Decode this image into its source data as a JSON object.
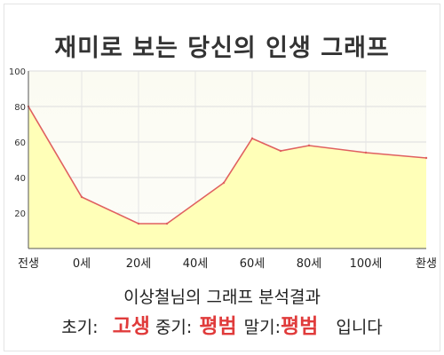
{
  "title": "재미로 보는 당신의 인생 그래프",
  "chart_data": {
    "type": "area",
    "x_labels": [
      "전생",
      "0세",
      "20세",
      "40세",
      "60세",
      "80세",
      "100세",
      "환생"
    ],
    "points": [
      {
        "age": "전생",
        "value": 80
      },
      {
        "age": "0세",
        "value": 29
      },
      {
        "age": "20세",
        "value": 14
      },
      {
        "age": "30세",
        "value": 14
      },
      {
        "age": "50세",
        "value": 37
      },
      {
        "age": "60세",
        "value": 62
      },
      {
        "age": "70세",
        "value": 55
      },
      {
        "age": "80세",
        "value": 58
      },
      {
        "age": "100세",
        "value": 54
      },
      {
        "age": "환생",
        "value": 51
      }
    ],
    "y_ticks": [
      20,
      40,
      60,
      80,
      100
    ],
    "ylim": [
      0,
      100
    ],
    "line_color": "#e06060",
    "fill_color": "#ffffb8",
    "grid": true
  },
  "result": {
    "heading": "이상철님의 그래프 분석결과",
    "early_label": "초기:",
    "early_value": "고생",
    "middle_label": "중기:",
    "middle_value": "평범",
    "late_label": "말기:",
    "late_value": "평범",
    "suffix": "입니다"
  }
}
